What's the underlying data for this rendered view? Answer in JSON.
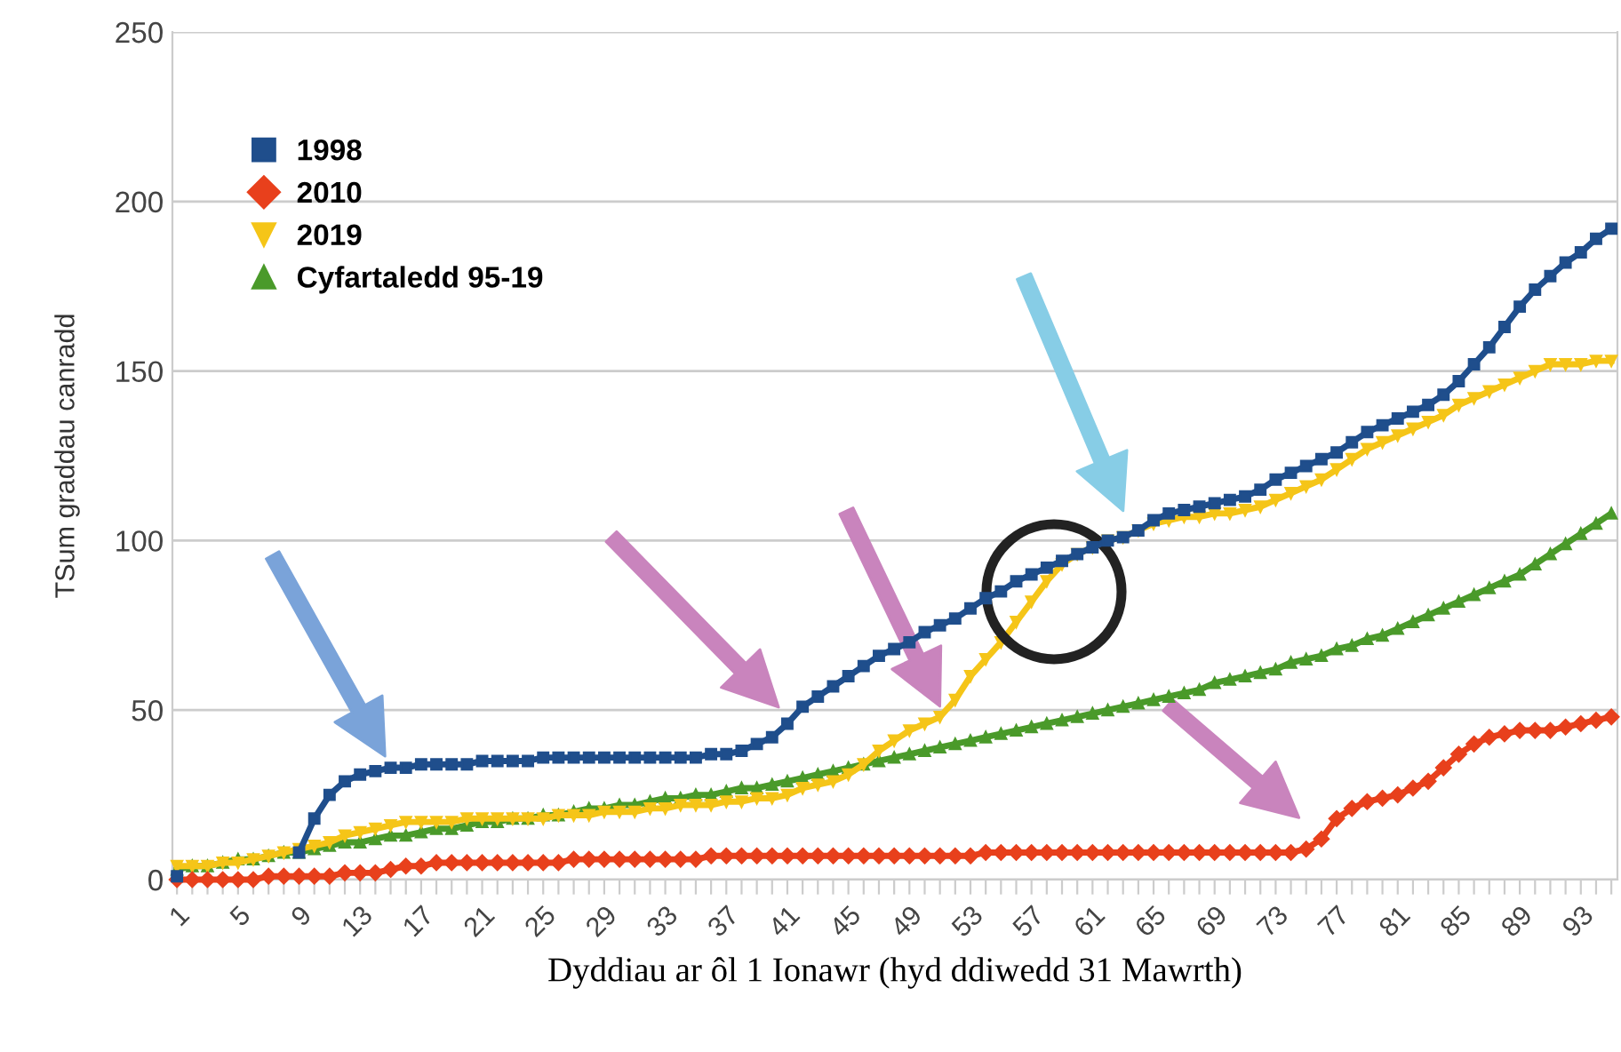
{
  "chart_data": {
    "type": "line",
    "xlabel": "Dyddiau ar ôl 1 Ionawr (hyd ddiwedd 31 Mawrth)",
    "ylabel": "TSum graddau canradd",
    "categories": [
      "1",
      null,
      null,
      null,
      "5",
      null,
      null,
      null,
      "9",
      null,
      null,
      null,
      "13",
      null,
      null,
      null,
      "17",
      null,
      null,
      null,
      "21",
      null,
      null,
      null,
      "25",
      null,
      null,
      null,
      "29",
      null,
      null,
      null,
      "33",
      null,
      null,
      null,
      "37",
      null,
      null,
      null,
      "41",
      null,
      null,
      null,
      "45",
      null,
      null,
      null,
      "49",
      null,
      null,
      null,
      "53",
      null,
      null,
      null,
      "57",
      null,
      null,
      null,
      "61",
      null,
      null,
      null,
      "65",
      null,
      null,
      null,
      "69",
      null,
      null,
      null,
      "73",
      null,
      null,
      null,
      "77",
      null,
      null,
      null,
      "81",
      null,
      null,
      null,
      "85",
      null,
      null,
      null,
      "89",
      null,
      null,
      null,
      "93",
      null,
      null
    ],
    "series": [
      {
        "name": "1998",
        "color": "#1f4e8c",
        "marker": "square",
        "values": [
          1,
          null,
          null,
          null,
          null,
          null,
          null,
          null,
          8,
          18,
          25,
          29,
          31,
          32,
          33,
          33,
          34,
          34,
          34,
          34,
          35,
          35,
          35,
          35,
          36,
          36,
          36,
          36,
          36,
          36,
          36,
          36,
          36,
          36,
          36,
          37,
          37,
          38,
          40,
          42,
          46,
          51,
          54,
          57,
          60,
          63,
          66,
          68,
          70,
          73,
          75,
          77,
          80,
          83,
          85,
          88,
          90,
          92,
          94,
          96,
          98,
          100,
          101,
          103,
          106,
          108,
          109,
          110,
          111,
          112,
          113,
          115,
          118,
          120,
          122,
          124,
          126,
          129,
          132,
          134,
          136,
          138,
          140,
          143,
          147,
          152,
          157,
          163,
          169,
          174,
          178,
          182,
          185,
          189,
          192
        ]
      },
      {
        "name": "2010",
        "color": "#e8401c",
        "marker": "diamond",
        "values": [
          0,
          0,
          0,
          0,
          0,
          0,
          1,
          1,
          1,
          1,
          1,
          2,
          2,
          2,
          3,
          4,
          4,
          5,
          5,
          5,
          5,
          5,
          5,
          5,
          5,
          5,
          6,
          6,
          6,
          6,
          6,
          6,
          6,
          6,
          6,
          7,
          7,
          7,
          7,
          7,
          7,
          7,
          7,
          7,
          7,
          7,
          7,
          7,
          7,
          7,
          7,
          7,
          7,
          8,
          8,
          8,
          8,
          8,
          8,
          8,
          8,
          8,
          8,
          8,
          8,
          8,
          8,
          8,
          8,
          8,
          8,
          8,
          8,
          8,
          9,
          12,
          18,
          21,
          23,
          24,
          25,
          27,
          29,
          33,
          37,
          40,
          42,
          43,
          44,
          44,
          44,
          45,
          46,
          47,
          48
        ]
      },
      {
        "name": "2019",
        "color": "#f5c518",
        "marker": "triangle_down",
        "values": [
          4,
          4,
          4,
          5,
          5,
          6,
          7,
          8,
          9,
          10,
          11,
          13,
          14,
          15,
          16,
          17,
          17,
          17,
          17,
          18,
          18,
          18,
          18,
          18,
          18,
          19,
          19,
          19,
          20,
          20,
          20,
          21,
          21,
          22,
          22,
          22,
          23,
          23,
          24,
          24,
          25,
          27,
          28,
          29,
          31,
          34,
          38,
          41,
          44,
          46,
          48,
          53,
          60,
          65,
          70,
          76,
          82,
          88,
          93,
          96,
          98,
          100,
          101,
          103,
          105,
          106,
          107,
          107,
          108,
          108,
          109,
          110,
          112,
          114,
          116,
          118,
          121,
          124,
          127,
          129,
          131,
          133,
          135,
          137,
          140,
          142,
          144,
          146,
          148,
          150,
          152,
          152,
          152,
          153,
          153
        ]
      },
      {
        "name": "Cyfartaledd 95-19",
        "color": "#4a9a2a",
        "marker": "triangle",
        "values": [
          3,
          4,
          4,
          5,
          6,
          6,
          7,
          8,
          8,
          9,
          10,
          11,
          11,
          12,
          13,
          13,
          14,
          15,
          15,
          16,
          17,
          17,
          18,
          18,
          19,
          19,
          20,
          21,
          21,
          22,
          22,
          23,
          24,
          24,
          25,
          25,
          26,
          27,
          27,
          28,
          29,
          30,
          31,
          32,
          33,
          34,
          35,
          36,
          37,
          38,
          39,
          40,
          41,
          42,
          43,
          44,
          45,
          46,
          47,
          48,
          49,
          50,
          51,
          52,
          53,
          54,
          55,
          56,
          58,
          59,
          60,
          61,
          62,
          64,
          65,
          66,
          68,
          69,
          71,
          72,
          74,
          76,
          78,
          80,
          82,
          84,
          86,
          88,
          90,
          93,
          96,
          99,
          102,
          105,
          108
        ]
      }
    ],
    "ylim": [
      0,
      250
    ],
    "yticks": [
      0,
      50,
      100,
      150,
      200,
      250
    ],
    "grid": "y",
    "legend": "top left"
  }
}
